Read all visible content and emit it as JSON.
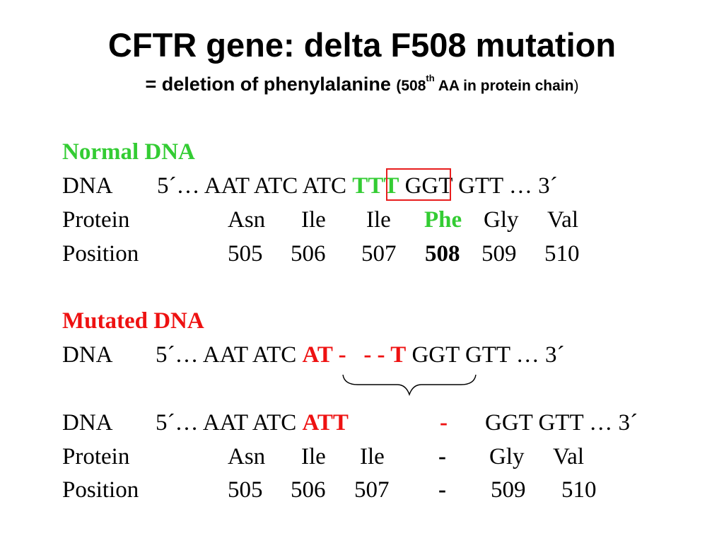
{
  "header": {
    "title": "CFTR gene: delta F508 mutation",
    "subtitle_main": "= deletion of phenylalanine",
    "subtitle_open": "(508",
    "subtitle_sup": "th",
    "subtitle_rest": " AA in protein chain",
    "subtitle_close": ")"
  },
  "normal": {
    "heading": "Normal DNA",
    "dna_label": "DNA",
    "dna_prefix": "5´… AAT ATC AT",
    "dna_c": "C",
    "dna_highlight": "TTT",
    "dna_suffix": "GGT GTT … 3´",
    "protein_label": "Protein",
    "protein": [
      "Asn",
      "Ile",
      "Ile",
      "Phe",
      "Gly",
      "Val"
    ],
    "position_label": "Position",
    "positions": [
      "505",
      "506",
      "507",
      "508",
      "509",
      "510"
    ]
  },
  "mutated": {
    "heading": "Mutated DNA",
    "dna1_label": "DNA",
    "dna1_prefix": "5´… AAT ATC",
    "dna1_red_a": "AT -",
    "dna1_red_b": "- - T",
    "dna1_suffix": "GGT GTT … 3´",
    "dna2_label": "DNA",
    "dna2_prefix": "5´… AAT ATC",
    "dna2_red": "ATT",
    "dna2_dash": "-",
    "dna2_suffix": "GGT GTT … 3´",
    "protein_label": "Protein",
    "protein": [
      "Asn",
      "Ile",
      "Ile",
      "-",
      "Gly",
      "Val"
    ],
    "position_label": "Position",
    "positions": [
      "505",
      "506",
      "507",
      "-",
      "509",
      "510"
    ]
  },
  "colors": {
    "normal": "#33cc33",
    "mutated": "#ee1111",
    "box": "#e81e1e"
  }
}
